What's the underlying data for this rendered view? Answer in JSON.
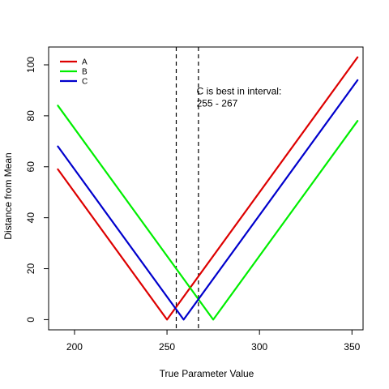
{
  "chart_data": {
    "type": "line",
    "title": "",
    "xlabel": "True Parameter Value",
    "ylabel": "Distance from Mean",
    "xlim": [
      186,
      356
    ],
    "ylim": [
      -4,
      107
    ],
    "xticks": [
      200,
      250,
      300,
      350
    ],
    "yticks": [
      0,
      20,
      40,
      60,
      80,
      100
    ],
    "grid": false,
    "legend_position": "top-left",
    "series": [
      {
        "name": "A",
        "color": "#dd0000",
        "x": [
          191,
          250,
          353
        ],
        "y": [
          59,
          0,
          103
        ]
      },
      {
        "name": "B",
        "color": "#00ee00",
        "x": [
          191,
          275,
          353
        ],
        "y": [
          84,
          0,
          78
        ]
      },
      {
        "name": "C",
        "color": "#0000cc",
        "x": [
          191,
          259,
          353
        ],
        "y": [
          68,
          0,
          94
        ]
      }
    ],
    "vlines": [
      255,
      267
    ],
    "annotation": {
      "line1": "C is best in interval:",
      "line2": " 255 - 267",
      "x": 266,
      "y": 90
    }
  }
}
